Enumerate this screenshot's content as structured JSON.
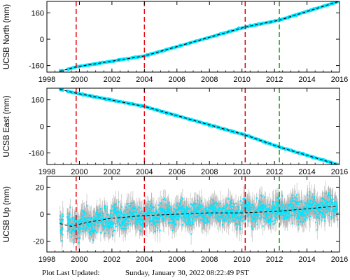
{
  "footer": {
    "label": "Plot Last Updated:",
    "timestamp": "Sunday, January 30, 2022 08:22:49 PST"
  },
  "colors": {
    "data": "#00e5ff",
    "error_bars": "#b4b4b4",
    "trend": "#000000",
    "event_red": "#e8000b",
    "event_green": "#1aa01a"
  },
  "chart_data": [
    {
      "type": "scatter",
      "ylabel": "UCSB North (mm)",
      "xlim": [
        1998,
        2016
      ],
      "ylim": [
        -200,
        230
      ],
      "x_ticks": [
        "1998",
        "2000",
        "2002",
        "2004",
        "2006",
        "2008",
        "2010",
        "2012",
        "2014",
        "2016"
      ],
      "y_ticks": [
        {
          "value": 160,
          "label": "160"
        },
        {
          "value": 0,
          "label": "0"
        },
        {
          "value": -160,
          "label": "-160"
        }
      ],
      "series": [
        {
          "x": [
            1998.8,
            1999.8,
            2000.0,
            2004.0,
            2010.2,
            2012.3,
            2015.9
          ],
          "y": [
            -195,
            -168,
            -165,
            -102,
            74,
            116,
            228
          ]
        }
      ],
      "vlines": [
        {
          "x": 1999.8,
          "color": "red"
        },
        {
          "x": 2004.0,
          "color": "red"
        },
        {
          "x": 2010.2,
          "color": "red"
        },
        {
          "x": 2012.3,
          "color": "green"
        }
      ]
    },
    {
      "type": "scatter",
      "ylabel": "UCSB East (mm)",
      "xlim": [
        1998,
        2016
      ],
      "ylim": [
        -230,
        230
      ],
      "x_ticks": [
        "1998",
        "2000",
        "2002",
        "2004",
        "2006",
        "2008",
        "2010",
        "2012",
        "2014",
        "2016"
      ],
      "y_ticks": [
        {
          "value": 160,
          "label": "160"
        },
        {
          "value": 0,
          "label": "0"
        },
        {
          "value": -160,
          "label": "-160"
        }
      ],
      "series": [
        {
          "x": [
            1998.8,
            1999.8,
            2004.0,
            2010.2,
            2012.3,
            2015.9
          ],
          "y": [
            223,
            200,
            120,
            -52,
            -125,
            -230
          ]
        }
      ],
      "vlines": [
        {
          "x": 1999.8,
          "color": "red"
        },
        {
          "x": 2004.0,
          "color": "red"
        },
        {
          "x": 2010.2,
          "color": "red"
        },
        {
          "x": 2012.3,
          "color": "green"
        }
      ]
    },
    {
      "type": "scatter",
      "ylabel": "UCSB Up (mm)",
      "xlim": [
        1998,
        2016
      ],
      "ylim": [
        -28,
        28
      ],
      "x_ticks": [
        "1998",
        "2000",
        "2002",
        "2004",
        "2006",
        "2008",
        "2010",
        "2012",
        "2014",
        "2016"
      ],
      "y_ticks": [
        {
          "value": 20,
          "label": "20"
        },
        {
          "value": 0,
          "label": "0"
        },
        {
          "value": -20,
          "label": "-20"
        }
      ],
      "series": [
        {
          "x": [
            1998.8,
            1999.5,
            2000.5,
            2002.0,
            2004.0,
            2006.0,
            2008.0,
            2010.0,
            2012.0,
            2014.0,
            2015.9
          ],
          "y": [
            -7,
            -9,
            -6,
            -3,
            -1,
            0,
            1,
            1,
            2,
            4,
            6
          ]
        }
      ],
      "vlines": [
        {
          "x": 1999.8,
          "color": "red"
        },
        {
          "x": 2004.0,
          "color": "red"
        },
        {
          "x": 2010.2,
          "color": "red"
        },
        {
          "x": 2012.3,
          "color": "green"
        }
      ]
    }
  ]
}
